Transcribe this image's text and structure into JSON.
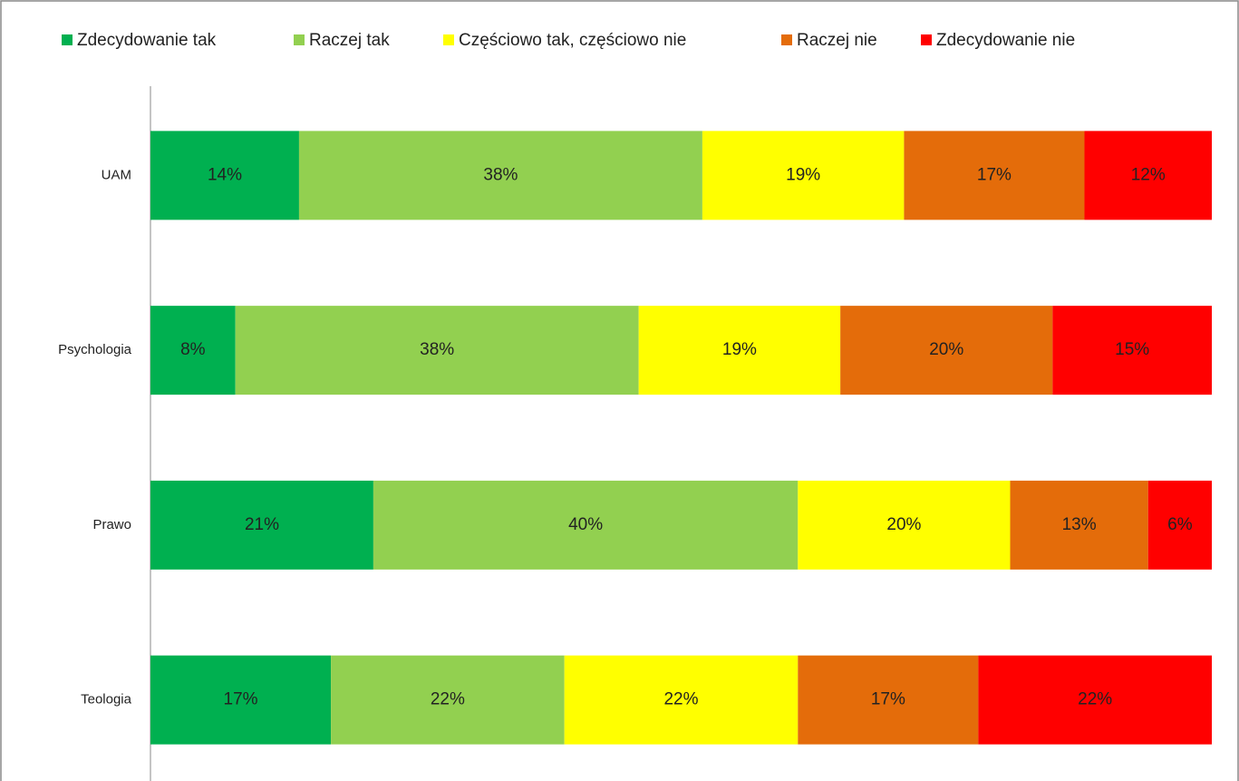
{
  "chart_data": {
    "type": "stacked_bar_horizontal",
    "categories": [
      "UAM",
      "Psychologia",
      "Prawo",
      "Teologia"
    ],
    "series": [
      {
        "name": "Zdecydowanie tak",
        "color": "#00b050",
        "values": [
          14,
          8,
          21,
          17
        ],
        "value_labels": [
          "14%",
          "8%",
          "21%",
          "17%"
        ]
      },
      {
        "name": "Raczej tak",
        "color": "#92d050",
        "values": [
          38,
          38,
          40,
          22
        ],
        "value_labels": [
          "38%",
          "38%",
          "40%",
          "22%"
        ]
      },
      {
        "name": "Częściowo tak, częściowo nie",
        "color": "#ffff00",
        "values": [
          19,
          19,
          20,
          22
        ],
        "value_labels": [
          "19%",
          "19%",
          "20%",
          "22%"
        ]
      },
      {
        "name": "Raczej nie",
        "color": "#e46c0a",
        "values": [
          17,
          20,
          13,
          17
        ],
        "value_labels": [
          "17%",
          "20%",
          "13%",
          "17%"
        ]
      },
      {
        "name": "Zdecydowanie nie",
        "color": "#ff0000",
        "values": [
          12,
          15,
          6,
          22
        ],
        "value_labels": [
          "12%",
          "15%",
          "6%",
          "22%"
        ]
      }
    ],
    "legend": "top"
  }
}
